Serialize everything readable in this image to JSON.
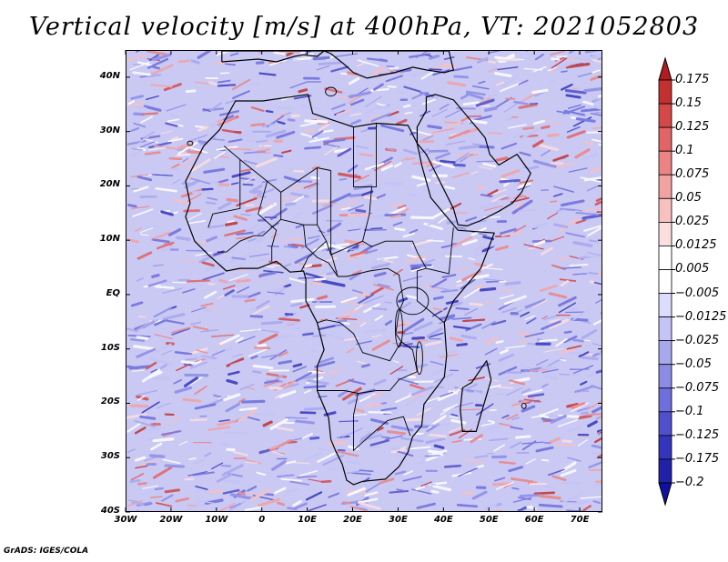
{
  "title": "Vertical velocity [m/s] at 400hPa, VT: 2021052803",
  "footer": "GrADS: IGES/COLA",
  "map": {
    "variable": "Vertical velocity",
    "units": "m/s",
    "level": "400hPa",
    "valid_time": "2021052803",
    "region": "Africa",
    "lat_range": [
      -40,
      45
    ],
    "lon_range": [
      -30,
      75
    ],
    "lat_ticks": [
      {
        "value": 40,
        "label": "40N"
      },
      {
        "value": 30,
        "label": "30N"
      },
      {
        "value": 20,
        "label": "20N"
      },
      {
        "value": 10,
        "label": "10N"
      },
      {
        "value": 0,
        "label": "EQ"
      },
      {
        "value": -10,
        "label": "10S"
      },
      {
        "value": -20,
        "label": "20S"
      },
      {
        "value": -30,
        "label": "30S"
      },
      {
        "value": -40,
        "label": "40S"
      }
    ],
    "lon_ticks": [
      {
        "value": -30,
        "label": "30W"
      },
      {
        "value": -20,
        "label": "20W"
      },
      {
        "value": -10,
        "label": "10W"
      },
      {
        "value": 0,
        "label": "0"
      },
      {
        "value": 10,
        "label": "10E"
      },
      {
        "value": 20,
        "label": "20E"
      },
      {
        "value": 30,
        "label": "30E"
      },
      {
        "value": 40,
        "label": "40E"
      },
      {
        "value": 50,
        "label": "50E"
      },
      {
        "value": 60,
        "label": "60E"
      },
      {
        "value": 70,
        "label": "70E"
      }
    ]
  },
  "colorbar": {
    "labels": [
      "0.175",
      "0.15",
      "0.125",
      "0.1",
      "0.075",
      "0.05",
      "0.025",
      "0.0125",
      "0.005",
      "−0.005",
      "−0.0125",
      "−0.025",
      "−0.05",
      "−0.075",
      "−0.1",
      "−0.125",
      "−0.175",
      "−0.2"
    ],
    "colors": [
      "#b21c1c",
      "#c43030",
      "#d44848",
      "#e26464",
      "#ec8484",
      "#f3a2a2",
      "#f8c0c0",
      "#fcdede",
      "#ffffff",
      "#ffffff",
      "#dcdcfc",
      "#c4c4f6",
      "#a8a8ee",
      "#8c8ce6",
      "#6e6edc",
      "#5050cc",
      "#3434bc",
      "#2020a8",
      "#1010a0"
    ]
  }
}
